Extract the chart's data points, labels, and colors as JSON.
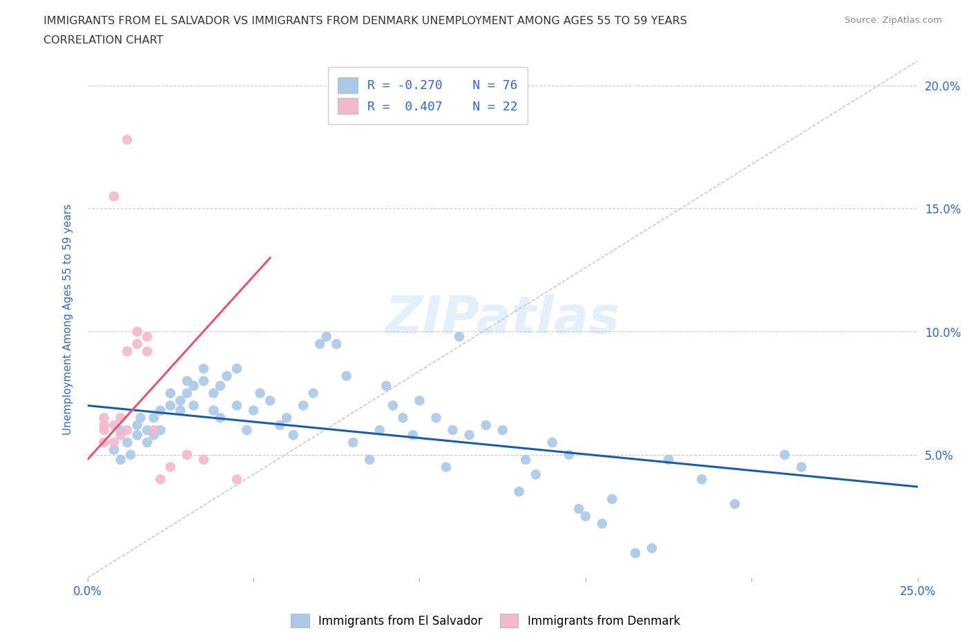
{
  "title_line1": "IMMIGRANTS FROM EL SALVADOR VS IMMIGRANTS FROM DENMARK UNEMPLOYMENT AMONG AGES 55 TO 59 YEARS",
  "title_line2": "CORRELATION CHART",
  "source_text": "Source: ZipAtlas.com",
  "ylabel": "Unemployment Among Ages 55 to 59 years",
  "xlim": [
    0.0,
    0.25
  ],
  "ylim": [
    0.0,
    0.21
  ],
  "legend_blue_label": "Immigrants from El Salvador",
  "legend_pink_label": "Immigrants from Denmark",
  "r_blue": "-0.270",
  "n_blue": "76",
  "r_pink": "0.407",
  "n_pink": "22",
  "blue_color": "#aac8e8",
  "pink_color": "#f2b8cc",
  "blue_line_color": "#1a5ca8",
  "pink_line_color": "#e05570",
  "grid_color": "#cccccc",
  "watermark_text": "ZIPatlas",
  "title_color": "#333333",
  "axis_label_color": "#3366bb",
  "blue_scatter": [
    [
      0.005,
      0.055
    ],
    [
      0.008,
      0.052
    ],
    [
      0.01,
      0.048
    ],
    [
      0.01,
      0.06
    ],
    [
      0.012,
      0.055
    ],
    [
      0.013,
      0.05
    ],
    [
      0.015,
      0.058
    ],
    [
      0.015,
      0.062
    ],
    [
      0.016,
      0.065
    ],
    [
      0.018,
      0.055
    ],
    [
      0.018,
      0.06
    ],
    [
      0.02,
      0.058
    ],
    [
      0.02,
      0.065
    ],
    [
      0.022,
      0.06
    ],
    [
      0.022,
      0.068
    ],
    [
      0.025,
      0.07
    ],
    [
      0.025,
      0.075
    ],
    [
      0.028,
      0.072
    ],
    [
      0.028,
      0.068
    ],
    [
      0.03,
      0.075
    ],
    [
      0.03,
      0.08
    ],
    [
      0.032,
      0.07
    ],
    [
      0.032,
      0.078
    ],
    [
      0.035,
      0.08
    ],
    [
      0.035,
      0.085
    ],
    [
      0.038,
      0.068
    ],
    [
      0.038,
      0.075
    ],
    [
      0.04,
      0.065
    ],
    [
      0.04,
      0.078
    ],
    [
      0.042,
      0.082
    ],
    [
      0.045,
      0.07
    ],
    [
      0.045,
      0.085
    ],
    [
      0.048,
      0.06
    ],
    [
      0.05,
      0.068
    ],
    [
      0.052,
      0.075
    ],
    [
      0.055,
      0.072
    ],
    [
      0.058,
      0.062
    ],
    [
      0.06,
      0.065
    ],
    [
      0.062,
      0.058
    ],
    [
      0.065,
      0.07
    ],
    [
      0.068,
      0.075
    ],
    [
      0.07,
      0.095
    ],
    [
      0.072,
      0.098
    ],
    [
      0.075,
      0.095
    ],
    [
      0.078,
      0.082
    ],
    [
      0.08,
      0.055
    ],
    [
      0.085,
      0.048
    ],
    [
      0.088,
      0.06
    ],
    [
      0.09,
      0.078
    ],
    [
      0.092,
      0.07
    ],
    [
      0.095,
      0.065
    ],
    [
      0.098,
      0.058
    ],
    [
      0.1,
      0.072
    ],
    [
      0.105,
      0.065
    ],
    [
      0.108,
      0.045
    ],
    [
      0.11,
      0.06
    ],
    [
      0.112,
      0.098
    ],
    [
      0.115,
      0.058
    ],
    [
      0.12,
      0.062
    ],
    [
      0.125,
      0.06
    ],
    [
      0.13,
      0.035
    ],
    [
      0.132,
      0.048
    ],
    [
      0.135,
      0.042
    ],
    [
      0.14,
      0.055
    ],
    [
      0.145,
      0.05
    ],
    [
      0.148,
      0.028
    ],
    [
      0.15,
      0.025
    ],
    [
      0.155,
      0.022
    ],
    [
      0.158,
      0.032
    ],
    [
      0.165,
      0.01
    ],
    [
      0.17,
      0.012
    ],
    [
      0.175,
      0.048
    ],
    [
      0.185,
      0.04
    ],
    [
      0.195,
      0.03
    ],
    [
      0.21,
      0.05
    ],
    [
      0.215,
      0.045
    ]
  ],
  "pink_scatter": [
    [
      0.005,
      0.055
    ],
    [
      0.005,
      0.06
    ],
    [
      0.005,
      0.062
    ],
    [
      0.005,
      0.065
    ],
    [
      0.008,
      0.055
    ],
    [
      0.008,
      0.062
    ],
    [
      0.01,
      0.058
    ],
    [
      0.01,
      0.065
    ],
    [
      0.012,
      0.06
    ],
    [
      0.012,
      0.092
    ],
    [
      0.015,
      0.095
    ],
    [
      0.015,
      0.1
    ],
    [
      0.018,
      0.092
    ],
    [
      0.018,
      0.098
    ],
    [
      0.008,
      0.155
    ],
    [
      0.012,
      0.178
    ],
    [
      0.02,
      0.06
    ],
    [
      0.022,
      0.04
    ],
    [
      0.025,
      0.045
    ],
    [
      0.03,
      0.05
    ],
    [
      0.035,
      0.048
    ],
    [
      0.045,
      0.04
    ]
  ],
  "blue_trendline": [
    [
      0.0,
      0.07
    ],
    [
      0.25,
      0.037
    ]
  ],
  "pink_trendline": [
    [
      0.0,
      0.048
    ],
    [
      0.055,
      0.13
    ]
  ]
}
